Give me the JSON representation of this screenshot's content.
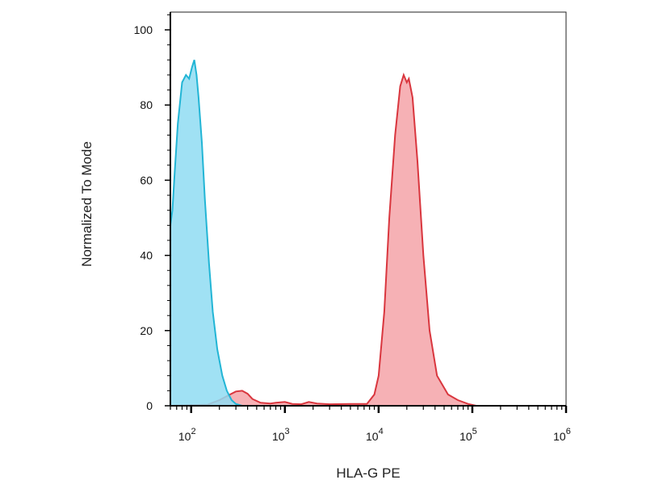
{
  "chart_data": {
    "type": "area",
    "xlabel": "HLA-G PE",
    "ylabel": "Normalized To Mode",
    "x_scale": "log",
    "xlim": [
      60,
      1000000
    ],
    "ylim": [
      0,
      105
    ],
    "y_ticks": [
      0,
      20,
      40,
      60,
      80,
      100
    ],
    "x_ticks": [
      {
        "value": 100,
        "base": "10",
        "exp": "2"
      },
      {
        "value": 1000,
        "base": "10",
        "exp": "3"
      },
      {
        "value": 10000,
        "base": "10",
        "exp": "4"
      },
      {
        "value": 100000,
        "base": "10",
        "exp": "5"
      },
      {
        "value": 1000000,
        "base": "10",
        "exp": "6"
      }
    ],
    "grid": false,
    "legend": "none",
    "series": [
      {
        "color_fill": "#f5a3a8",
        "color_line": "#d9363e",
        "points": [
          [
            60,
            0
          ],
          [
            150,
            0.3
          ],
          [
            200,
            1.5
          ],
          [
            260,
            3.0
          ],
          [
            300,
            3.8
          ],
          [
            350,
            4.0
          ],
          [
            400,
            3.2
          ],
          [
            450,
            1.8
          ],
          [
            550,
            0.8
          ],
          [
            700,
            0.6
          ],
          [
            800,
            0.8
          ],
          [
            1000,
            1.0
          ],
          [
            1200,
            0.5
          ],
          [
            1500,
            0.4
          ],
          [
            1800,
            1.0
          ],
          [
            2200,
            0.6
          ],
          [
            3000,
            0.4
          ],
          [
            5000,
            0.5
          ],
          [
            7500,
            0.5
          ],
          [
            9000,
            3
          ],
          [
            10000,
            8
          ],
          [
            11500,
            25
          ],
          [
            13000,
            50
          ],
          [
            15000,
            72
          ],
          [
            17000,
            85
          ],
          [
            18500,
            88
          ],
          [
            20000,
            86
          ],
          [
            21000,
            87
          ],
          [
            23000,
            82
          ],
          [
            26000,
            65
          ],
          [
            30000,
            40
          ],
          [
            35000,
            20
          ],
          [
            42000,
            8
          ],
          [
            55000,
            3
          ],
          [
            70000,
            1.5
          ],
          [
            90000,
            0.5
          ],
          [
            110000,
            0
          ],
          [
            1000000,
            0
          ]
        ]
      },
      {
        "color_fill": "#8fdcf2",
        "color_line": "#22b5d5",
        "points": [
          [
            60,
            48
          ],
          [
            63,
            52
          ],
          [
            67,
            63
          ],
          [
            72,
            75
          ],
          [
            80,
            86
          ],
          [
            88,
            88
          ],
          [
            95,
            87
          ],
          [
            102,
            90
          ],
          [
            108,
            92
          ],
          [
            114,
            88
          ],
          [
            120,
            82
          ],
          [
            130,
            70
          ],
          [
            140,
            55
          ],
          [
            155,
            38
          ],
          [
            170,
            25
          ],
          [
            190,
            15
          ],
          [
            215,
            8
          ],
          [
            240,
            4
          ],
          [
            270,
            1.5
          ],
          [
            300,
            0.5
          ],
          [
            350,
            0
          ],
          [
            1000000,
            0
          ]
        ]
      }
    ]
  }
}
